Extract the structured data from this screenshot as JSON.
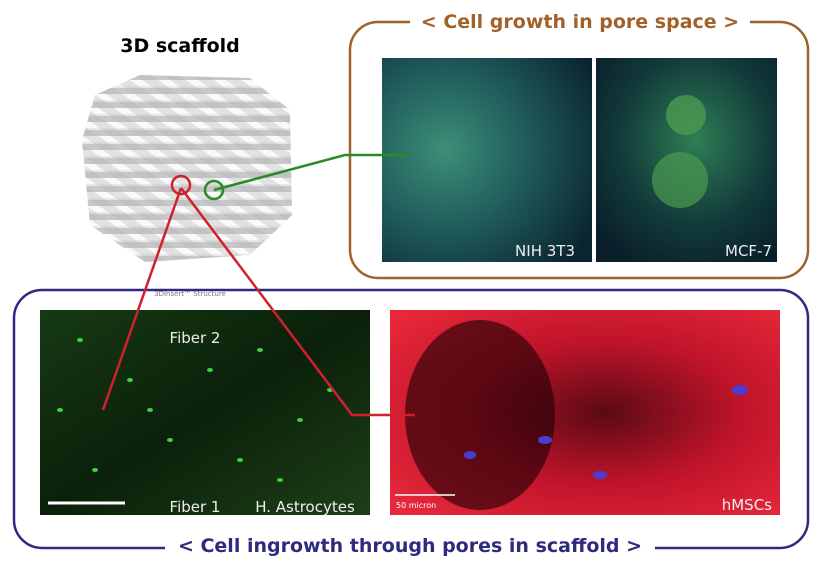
{
  "scaffold": {
    "title": "3D scaffold",
    "caption": "3DInsert™ Structure"
  },
  "top_panel": {
    "title": "< Cell growth in pore space >",
    "images": [
      {
        "label": "NIH 3T3"
      },
      {
        "label": "MCF-7"
      }
    ]
  },
  "bottom_panel": {
    "title": "< Cell ingrowth through pores in scaffold >",
    "images": [
      {
        "labels": [
          "Fiber 2",
          "Fiber 1",
          "H. Astrocytes"
        ]
      },
      {
        "label": "hMSCs",
        "scale_bar": "50 micron"
      }
    ]
  }
}
